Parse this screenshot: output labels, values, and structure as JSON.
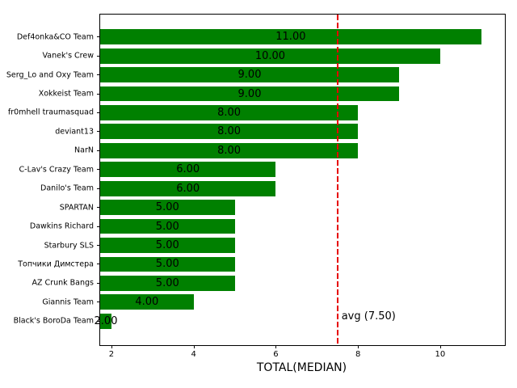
{
  "chart_data": {
    "type": "bar",
    "orientation": "horizontal",
    "title": "",
    "xlabel": "TOTAL(MEDIAN)",
    "ylabel": "",
    "bar_color": "#008000",
    "categories": [
      "Def4onka&CO Team",
      "Vanek's Crew",
      "Serg_Lo and Oxy Team",
      "Xokkeist Team",
      "fr0mhell traumasquad",
      "deviant13",
      "NarN",
      "C-Lav's Crazy Team",
      "Danilo's Team",
      "SPARTAN",
      "Dawkins Richard",
      "Starbury SLS",
      "Топчики Димстера",
      "AZ Crunk Bangs",
      "Giannis Team",
      "Black's BoroDa Team"
    ],
    "values": [
      11,
      10,
      9,
      9,
      8,
      8,
      8,
      6,
      6,
      5,
      5,
      5,
      5,
      5,
      4,
      2
    ],
    "bar_labels": [
      "11.00",
      "10.00",
      "9.00",
      "9.00",
      "8.00",
      "8.00",
      "8.00",
      "6.00",
      "6.00",
      "5.00",
      "5.00",
      "5.00",
      "5.00",
      "5.00",
      "4.00",
      "2.00"
    ],
    "xticks": [
      2,
      4,
      6,
      8,
      10
    ],
    "xtick_labels": [
      "2",
      "4",
      "6",
      "8",
      "10"
    ],
    "xlim": [
      1.725,
      11.575
    ],
    "grid": false,
    "avg_line": {
      "value": 7.5,
      "label": "avg (7.50)",
      "color": "#e60000",
      "style": "dashed"
    }
  }
}
